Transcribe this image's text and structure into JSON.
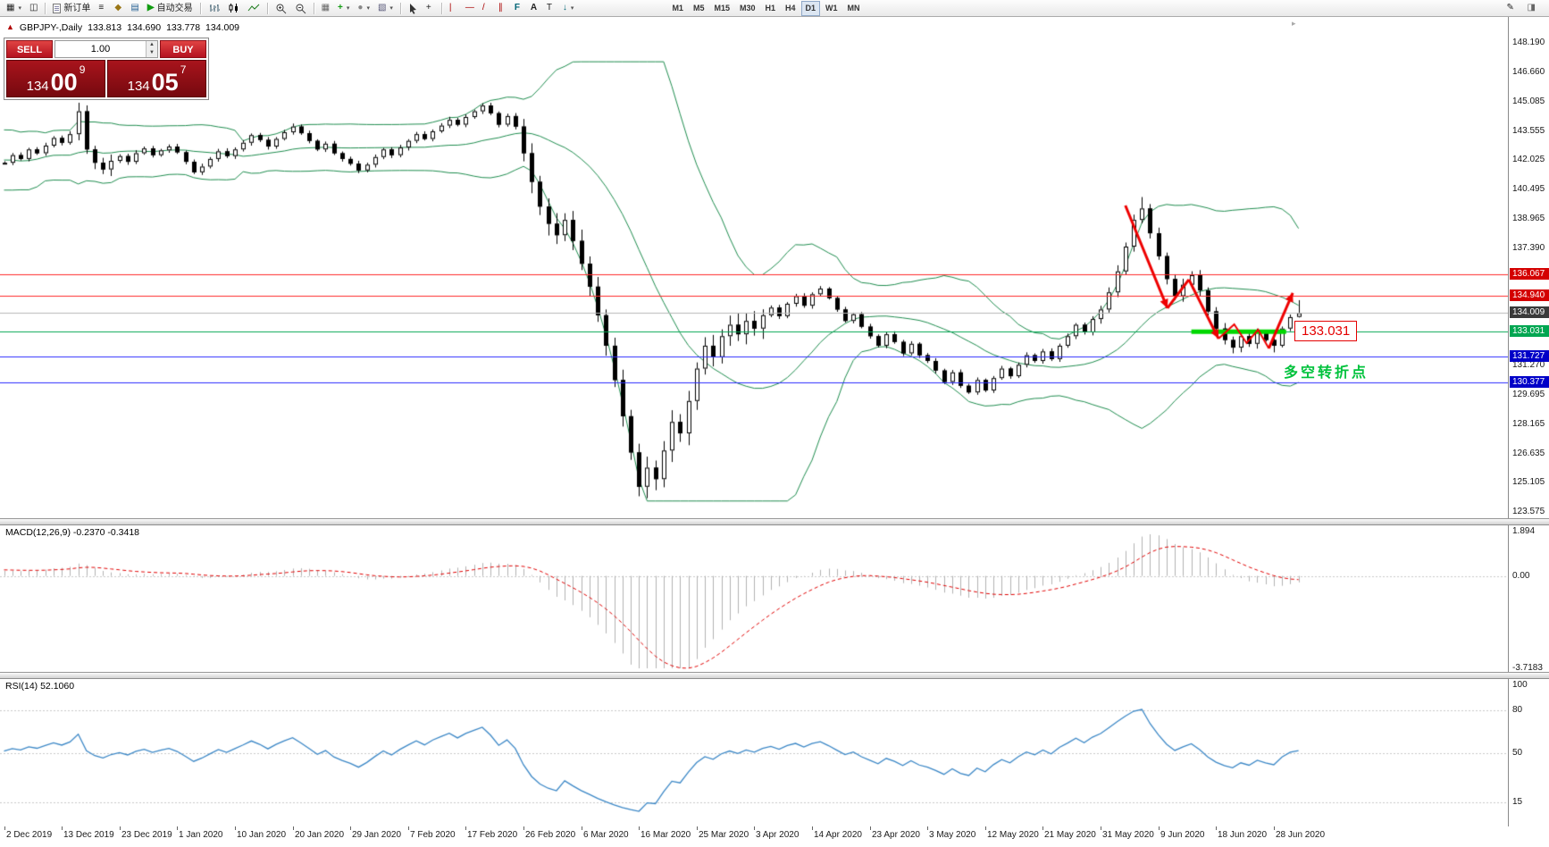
{
  "ui": {
    "toolbar": {
      "new_order_label": "新订单",
      "autotrading_label": "自动交易",
      "timeframes": [
        "M1",
        "M5",
        "M15",
        "M30",
        "H1",
        "H4",
        "D1",
        "W1",
        "MN"
      ],
      "active_timeframe": "D1",
      "icons": {
        "new_chart": "▦",
        "profiles": "◫",
        "market_watch": "≡",
        "navigator": "◆",
        "terminal": "▤",
        "autotrading_play": "▶",
        "indicators_plus": "+",
        "objects": "●",
        "templates": "▧",
        "tile_windows": "▦",
        "crosshair": "+",
        "vline": "|",
        "hline": "—",
        "trendline": "/",
        "channel": "∥",
        "fibonacci": "F",
        "text": "A",
        "label": "T",
        "arrows": "↓",
        "dropdown": "▾",
        "edit": "✎",
        "panel": "◨"
      }
    },
    "chart_header": {
      "collapse_marker": "▲",
      "title": "GBPJPY-,Daily",
      "open": "133.813",
      "high": "134.690",
      "low": "133.778",
      "close": "134.009"
    },
    "trade_panel": {
      "sell_label": "SELL",
      "buy_label": "BUY",
      "lot_value": "1.00",
      "bid_main": "134",
      "bid_pips": "00",
      "bid_point": "9",
      "ask_main": "134",
      "ask_pips": "05",
      "ask_point": "7"
    },
    "annotations": {
      "support_label": "133.031",
      "turning_point_label": "多空转折点"
    },
    "macd_header": "MACD(12,26,9) -0.2370 -0.3418",
    "rsi_header": "RSI(14) 52.1060",
    "shift_marker": "▸"
  },
  "chart_data": {
    "type": "candlestick",
    "symbol": "GBPJPY-",
    "period": "Daily",
    "ohlc": {
      "open": 133.813,
      "high": 134.69,
      "low": 133.778,
      "close": 134.009
    },
    "bars_per_label": 7,
    "x_labels": [
      "2 Dec 2019",
      "13 Dec 2019",
      "23 Dec 2019",
      "1 Jan 2020",
      "10 Jan 2020",
      "20 Jan 2020",
      "29 Jan 2020",
      "7 Feb 2020",
      "17 Feb 2020",
      "26 Feb 2020",
      "6 Mar 2020",
      "16 Mar 2020",
      "25 Mar 2020",
      "3 Apr 2020",
      "14 Apr 2020",
      "23 Apr 2020",
      "3 May 2020",
      "12 May 2020",
      "21 May 2020",
      "31 May 2020",
      "9 Jun 2020",
      "18 Jun 2020",
      "28 Jun 2020"
    ],
    "warmup_closes": [
      140.6,
      141.8,
      140.2,
      139.8,
      141.0,
      142.2,
      141.0,
      142.6,
      143.3,
      141.5,
      140.8,
      142.4,
      143.0,
      142.2,
      140.9,
      140.4,
      141.6,
      142.8,
      143.4,
      142.0,
      141.2,
      142.2,
      143.1,
      141.7,
      140.9,
      141.5,
      142.3,
      143.0,
      142.5,
      141.9
    ],
    "closes": [
      141.9,
      142.3,
      142.1,
      142.6,
      142.4,
      142.8,
      143.2,
      142.95,
      143.4,
      144.6,
      142.6,
      141.9,
      141.55,
      142.0,
      142.25,
      141.95,
      142.4,
      142.65,
      142.3,
      142.55,
      142.75,
      142.45,
      141.95,
      141.4,
      141.7,
      142.1,
      142.5,
      142.25,
      142.6,
      142.95,
      143.35,
      143.1,
      142.75,
      143.15,
      143.5,
      143.8,
      143.45,
      143.05,
      142.6,
      142.9,
      142.4,
      142.1,
      141.85,
      141.5,
      141.8,
      142.2,
      142.6,
      142.3,
      142.7,
      143.05,
      143.4,
      143.15,
      143.55,
      143.85,
      144.15,
      143.9,
      144.3,
      144.6,
      144.9,
      144.5,
      143.9,
      144.35,
      143.8,
      142.4,
      140.9,
      139.6,
      138.7,
      138.1,
      138.9,
      137.8,
      136.6,
      135.4,
      133.9,
      132.3,
      130.5,
      128.6,
      126.7,
      124.9,
      125.9,
      125.3,
      126.8,
      128.3,
      127.7,
      129.4,
      131.1,
      132.3,
      131.7,
      132.8,
      133.4,
      132.9,
      133.6,
      133.2,
      133.9,
      134.3,
      133.85,
      134.5,
      134.9,
      134.4,
      135.0,
      135.3,
      134.8,
      134.2,
      133.6,
      133.95,
      133.3,
      132.8,
      132.3,
      132.9,
      132.5,
      131.9,
      132.4,
      131.8,
      131.5,
      131.0,
      130.4,
      130.9,
      130.2,
      129.85,
      130.5,
      129.95,
      130.6,
      131.1,
      130.7,
      131.3,
      131.8,
      131.5,
      132.0,
      131.6,
      132.3,
      132.8,
      133.4,
      133.0,
      133.7,
      134.2,
      135.1,
      136.2,
      137.5,
      138.9,
      139.5,
      138.2,
      137.0,
      135.8,
      134.9,
      135.5,
      136.0,
      135.2,
      134.1,
      133.2,
      132.6,
      132.2,
      132.8,
      132.4,
      133.0,
      132.6,
      132.3,
      133.2,
      133.8,
      134.009
    ],
    "wick_default": 0.22,
    "wick_ranges": [
      {
        "from": 9,
        "to": 13,
        "wick": 0.5
      },
      {
        "from": 63,
        "to": 92,
        "wick": 0.85
      },
      {
        "from": 133,
        "to": 152,
        "wick": 0.45
      }
    ],
    "overrides": {
      "9": {
        "h": 145.05
      },
      "77": {
        "l": 124.4
      },
      "78": {
        "l": 124.3
      },
      "138": {
        "h": 140.1
      },
      "149": {
        "l": 131.9
      },
      "154": {
        "l": 131.95
      },
      "157": {
        "o": 133.813,
        "h": 134.69,
        "l": 133.778,
        "c": 134.009
      }
    },
    "colors": {
      "up_fill": "#ffffff",
      "down_fill": "#000000",
      "border": "#000000"
    },
    "bollinger": {
      "period": 20,
      "deviation": 2,
      "color": "#1e8c4e"
    },
    "hlines": [
      [
        136.067,
        "#ff2a2a",
        1
      ],
      [
        134.94,
        "#ff2a2a",
        1
      ],
      [
        133.031,
        "#00a651",
        1
      ],
      [
        131.727,
        "#2b2bff",
        1
      ],
      [
        130.377,
        "#2b2bff",
        1
      ]
    ],
    "bid_line": {
      "price": 134.009,
      "color": "#b8b8b8"
    },
    "support_zone": {
      "price": 133.031,
      "from_bar": 144,
      "to_bar": 155.5,
      "color": "#00d800",
      "width": 5
    },
    "arrow_color": "#ee0000",
    "arrows": [
      {
        "pts": [
          [
            136,
            139.66
          ],
          [
            141.1,
            134.27
          ]
        ],
        "head": true,
        "w": 3
      },
      {
        "pts": [
          [
            141.1,
            134.27
          ],
          [
            143.7,
            135.77
          ]
        ],
        "head": false,
        "w": 3
      },
      {
        "pts": [
          [
            143.7,
            135.77
          ],
          [
            147.3,
            132.67
          ]
        ],
        "head": true,
        "w": 3
      },
      {
        "pts": [
          [
            147.3,
            132.67
          ],
          [
            149.2,
            133.42
          ],
          [
            150.7,
            132.44
          ],
          [
            152.1,
            133.14
          ],
          [
            153.4,
            132.16
          ]
        ],
        "head": false,
        "w": 2
      },
      {
        "pts": [
          [
            153.4,
            132.16
          ],
          [
            156.3,
            135.07
          ]
        ],
        "head": true,
        "w": 3
      }
    ],
    "price_scale": {
      "grid": [
        [
          "148.190",
          148.19
        ],
        [
          "146.660",
          146.66
        ],
        [
          "145.085",
          145.085
        ],
        [
          "143.555",
          143.555
        ],
        [
          "142.025",
          142.025
        ],
        [
          "140.495",
          140.495
        ],
        [
          "138.965",
          138.965
        ],
        [
          "137.390",
          137.39
        ],
        [
          "131.270",
          131.27
        ],
        [
          "129.695",
          129.695
        ],
        [
          "128.165",
          128.165
        ],
        [
          "126.635",
          126.635
        ],
        [
          "125.105",
          125.105
        ],
        [
          "123.575",
          123.575
        ]
      ],
      "tags": [
        [
          "136.067",
          136.067,
          "#d40000"
        ],
        [
          "134.940",
          134.94,
          "#d40000"
        ],
        [
          "134.009",
          134.009,
          "#3a3a3a"
        ],
        [
          "133.031",
          133.031,
          "#00a651"
        ],
        [
          "131.727",
          131.727,
          "#0000c8"
        ],
        [
          "130.377",
          130.377,
          "#0000c8"
        ]
      ]
    },
    "macd": {
      "fast": 12,
      "slow": 26,
      "signal": 9,
      "value_main": -0.237,
      "value_signal": -0.3418,
      "scale": [
        [
          "1.894",
          1.894
        ],
        [
          "0.00",
          0
        ],
        [
          "-3.7183",
          -3.7183
        ]
      ],
      "histogram_color": "#b2b2b2",
      "signal_color": "#e00000"
    },
    "rsi": {
      "period": 14,
      "value": 52.106,
      "levels": [
        80,
        50,
        15
      ],
      "scale": [
        [
          "100",
          100
        ],
        [
          "80",
          80
        ],
        [
          "50",
          50
        ],
        [
          "15",
          15
        ]
      ],
      "line_color": "#3b87c6"
    }
  }
}
